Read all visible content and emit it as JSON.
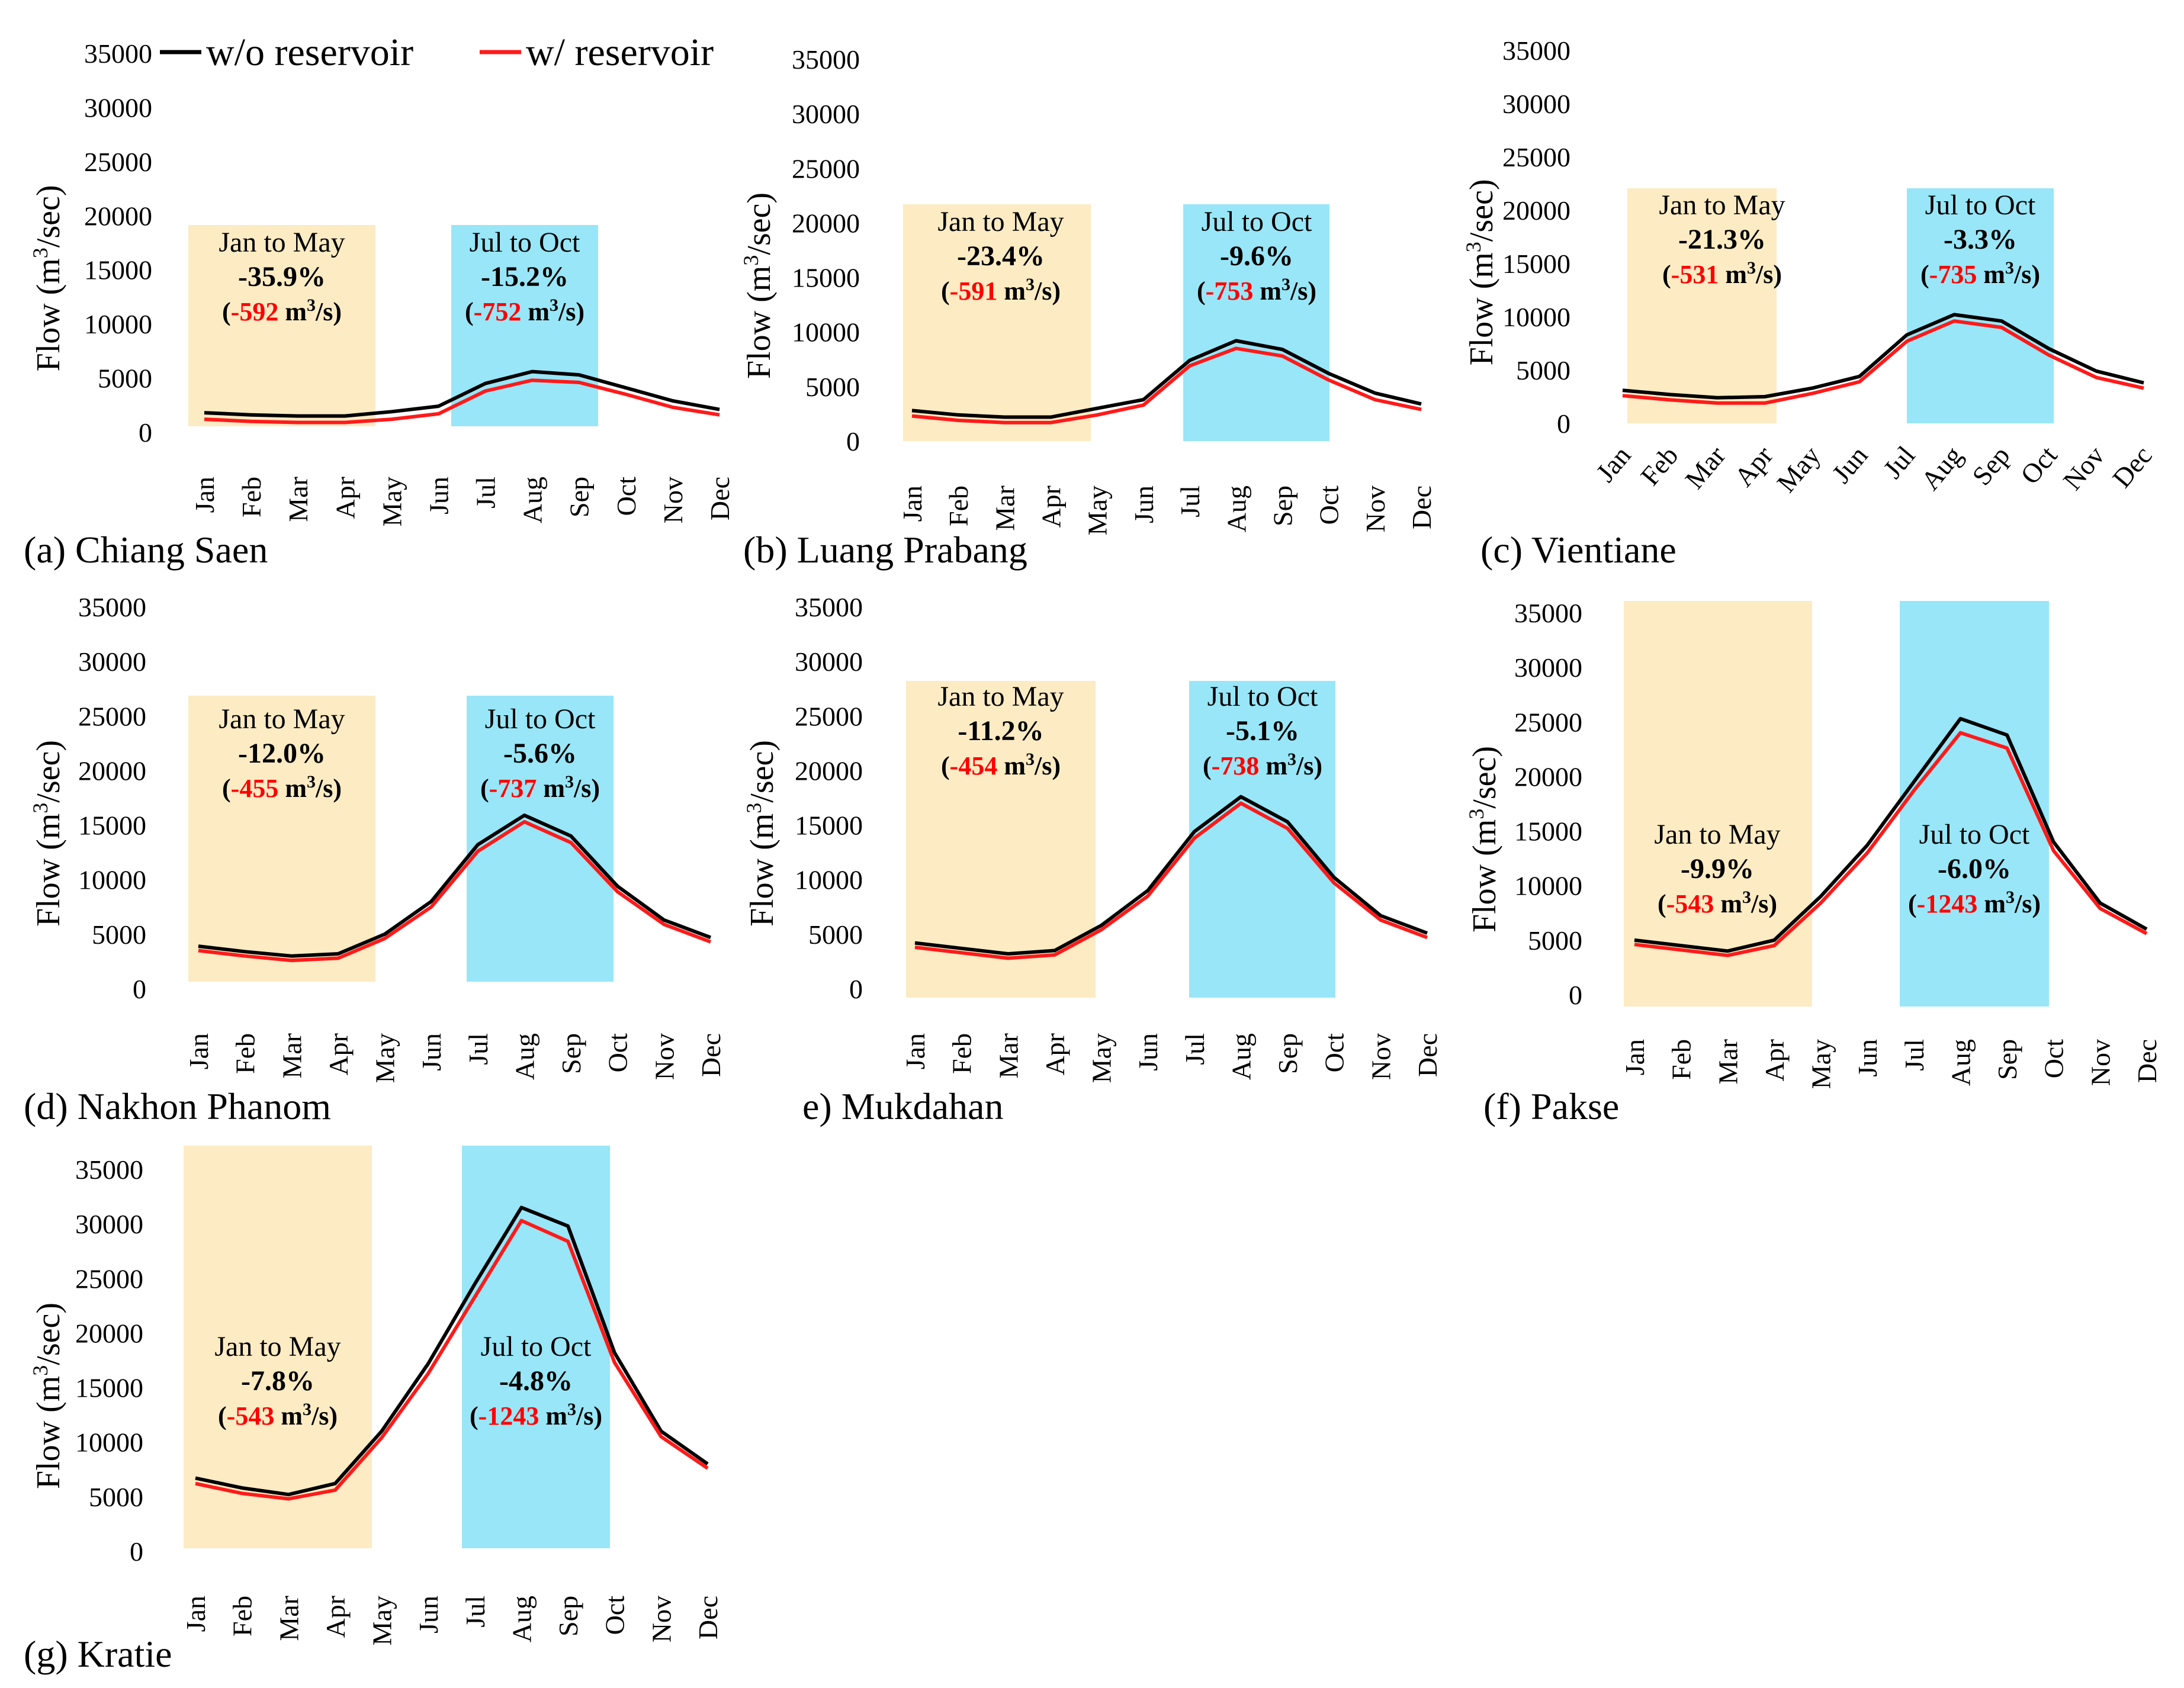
{
  "legend": [
    {
      "name": "w/o reservoir",
      "color": "#000000"
    },
    {
      "name": "w/ reservoir",
      "color": "#ff1a1a"
    }
  ],
  "colors": {
    "dry_box": "#fcebc3",
    "wet_box": "#98e6f7",
    "pct_text": "#ff0000",
    "abs_text": "#000000"
  },
  "chart_data": [
    {
      "type": "line",
      "panel_label": "(a) Chiang Saen",
      "ylabel": "Flow (m³/sec)",
      "ylim": [
        0,
        35000
      ],
      "yticks": [
        "0",
        "5000",
        "10000",
        "15000",
        "20000",
        "25000",
        "30000",
        "35000"
      ],
      "categories": [
        "Jan",
        "Feb",
        "Mar",
        "Apr",
        "May",
        "Jun",
        "Jul",
        "Aug",
        "Sep",
        "Oct",
        "Nov",
        "Dec"
      ],
      "series": [
        {
          "name": "w/o reservoir",
          "values": [
            1800,
            1600,
            1500,
            1500,
            1900,
            2400,
            4500,
            5600,
            5300,
            4100,
            2900,
            2100
          ]
        },
        {
          "name": "w/ reservoir",
          "values": [
            1200,
            1000,
            900,
            900,
            1200,
            1700,
            3800,
            4800,
            4600,
            3500,
            2300,
            1600
          ]
        }
      ],
      "annotations": [
        {
          "period": "Jan to May",
          "pct": "-35.9%",
          "abs_num": "-592",
          "unit": "m³/s"
        },
        {
          "period": "Jul to Oct",
          "pct": "-15.2%",
          "abs_num": "-752",
          "unit": "m³/s"
        }
      ]
    },
    {
      "type": "line",
      "panel_label": "(b) Luang Prabang",
      "ylabel": "Flow (m³/sec)",
      "ylim": [
        0,
        35000
      ],
      "yticks": [
        "0",
        "5000",
        "10000",
        "15000",
        "20000",
        "25000",
        "30000",
        "35000"
      ],
      "categories": [
        "Jan",
        "Feb",
        "Mar",
        "Apr",
        "May",
        "Jun",
        "Jul",
        "Aug",
        "Sep",
        "Oct",
        "Nov",
        "Dec"
      ],
      "series": [
        {
          "name": "w/o reservoir",
          "values": [
            2800,
            2400,
            2200,
            2200,
            3000,
            3800,
            7400,
            9200,
            8400,
            6200,
            4400,
            3400
          ]
        },
        {
          "name": "w/ reservoir",
          "values": [
            2300,
            1900,
            1700,
            1700,
            2400,
            3300,
            6900,
            8500,
            7800,
            5600,
            3800,
            2900
          ]
        }
      ],
      "annotations": [
        {
          "period": "Jan to May",
          "pct": "-23.4%",
          "abs_num": "-591",
          "unit": "m³/s"
        },
        {
          "period": "Jul to Oct",
          "pct": "-9.6%",
          "abs_num": "-753",
          "unit": "m³/s"
        }
      ]
    },
    {
      "type": "line",
      "panel_label": "(c) Vientiane",
      "ylabel": "Flow (m³/sec)",
      "ylim": [
        0,
        35000
      ],
      "yticks": [
        "0",
        "5000",
        "10000",
        "15000",
        "20000",
        "25000",
        "30000",
        "35000"
      ],
      "categories": [
        "Jan",
        "Feb",
        "Mar",
        "Apr",
        "May",
        "Jun",
        "Jul",
        "Aug",
        "Sep",
        "Oct",
        "Nov",
        "Dec"
      ],
      "series": [
        {
          "name": "w/o reservoir",
          "values": [
            3100,
            2700,
            2400,
            2500,
            3300,
            4400,
            8300,
            10200,
            9600,
            7000,
            4900,
            3800
          ]
        },
        {
          "name": "w/ reservoir",
          "values": [
            2600,
            2200,
            1900,
            1900,
            2800,
            3900,
            7700,
            9600,
            9000,
            6400,
            4300,
            3300
          ]
        }
      ],
      "annotations": [
        {
          "period": "Jan to May",
          "pct": "-21.3%",
          "abs_num": "-531",
          "unit": "m³/s"
        },
        {
          "period": "Jul to Oct",
          "pct": "-3.3%",
          "abs_num": "-735",
          "unit": "m³/s"
        }
      ]
    },
    {
      "type": "line",
      "panel_label": "(d) Nakhon Phanom",
      "ylabel": "Flow (m³/sec)",
      "ylim": [
        0,
        35000
      ],
      "yticks": [
        "0",
        "5000",
        "10000",
        "15000",
        "20000",
        "25000",
        "30000",
        "35000"
      ],
      "categories": [
        "Jan",
        "Feb",
        "Mar",
        "Apr",
        "May",
        "Jun",
        "Jul",
        "Aug",
        "Sep",
        "Oct",
        "Nov",
        "Dec"
      ],
      "series": [
        {
          "name": "w/o reservoir",
          "values": [
            3900,
            3400,
            3000,
            3200,
            5000,
            8000,
            13200,
            15900,
            14000,
            9400,
            6300,
            4700
          ]
        },
        {
          "name": "w/ reservoir",
          "values": [
            3500,
            3000,
            2600,
            2800,
            4600,
            7500,
            12600,
            15300,
            13400,
            8900,
            5900,
            4300
          ]
        }
      ],
      "annotations": [
        {
          "period": "Jan to May",
          "pct": "-12.0%",
          "abs_num": "-455",
          "unit": "m³/s"
        },
        {
          "period": "Jul to Oct",
          "pct": "-5.6%",
          "abs_num": "-737",
          "unit": "m³/s"
        }
      ]
    },
    {
      "type": "line",
      "panel_label": "e) Mukdahan",
      "ylabel": "Flow (m³/sec)",
      "ylim": [
        0,
        35000
      ],
      "yticks": [
        "0",
        "5000",
        "10000",
        "15000",
        "20000",
        "25000",
        "30000",
        "35000"
      ],
      "categories": [
        "Jan",
        "Feb",
        "Mar",
        "Apr",
        "May",
        "Jun",
        "Jul",
        "Aug",
        "Sep",
        "Oct",
        "Nov",
        "Dec"
      ],
      "series": [
        {
          "name": "w/o reservoir",
          "values": [
            4200,
            3700,
            3200,
            3500,
            5800,
            9000,
            14400,
            17600,
            15300,
            10200,
            6700,
            5100
          ]
        },
        {
          "name": "w/ reservoir",
          "values": [
            3800,
            3300,
            2800,
            3100,
            5400,
            8500,
            13800,
            17000,
            14700,
            9700,
            6300,
            4700
          ]
        }
      ],
      "annotations": [
        {
          "period": "Jan to May",
          "pct": "-11.2%",
          "abs_num": "-454",
          "unit": "m³/s"
        },
        {
          "period": "Jul to Oct",
          "pct": "-5.1%",
          "abs_num": "-738",
          "unit": "m³/s"
        }
      ]
    },
    {
      "type": "line",
      "panel_label": "(f) Pakse",
      "ylabel": "Flow (m³/sec)",
      "ylim": [
        0,
        35000
      ],
      "yticks": [
        "0",
        "5000",
        "10000",
        "15000",
        "20000",
        "25000",
        "30000",
        "35000"
      ],
      "categories": [
        "Jan",
        "Feb",
        "Mar",
        "Apr",
        "May",
        "Jun",
        "Jul",
        "Aug",
        "Sep",
        "Oct",
        "Nov",
        "Dec"
      ],
      "series": [
        {
          "name": "w/o reservoir",
          "values": [
            5000,
            4500,
            4000,
            5000,
            9000,
            13700,
            19500,
            25300,
            23800,
            14000,
            8400,
            6000
          ]
        },
        {
          "name": "w/ reservoir",
          "values": [
            4600,
            4100,
            3600,
            4500,
            8400,
            13000,
            18700,
            24000,
            22600,
            13200,
            7900,
            5600
          ]
        }
      ],
      "annotations": [
        {
          "period": "Jan to May",
          "pct": "-9.9%",
          "abs_num": "-543",
          "unit": "m³/s"
        },
        {
          "period": "Jul to Oct",
          "pct": "-6.0%",
          "abs_num": "-1243",
          "unit": "m³/s"
        }
      ]
    },
    {
      "type": "line",
      "panel_label": "(g) Kratie",
      "ylabel": "Flow (m³/sec)",
      "ylim": [
        0,
        35000
      ],
      "yticks": [
        "0",
        "5000",
        "10000",
        "15000",
        "20000",
        "25000",
        "30000",
        "35000"
      ],
      "categories": [
        "Jan",
        "Feb",
        "Mar",
        "Apr",
        "May",
        "Jun",
        "Jul",
        "Aug",
        "Sep",
        "Oct",
        "Nov",
        "Dec"
      ],
      "series": [
        {
          "name": "w/o reservoir",
          "values": [
            6700,
            5800,
            5200,
            6200,
            11000,
            17200,
            24500,
            31500,
            29800,
            18200,
            11000,
            8000
          ]
        },
        {
          "name": "w/ reservoir",
          "values": [
            6200,
            5300,
            4800,
            5600,
            10400,
            16300,
            23300,
            30300,
            28400,
            17300,
            10500,
            7600
          ]
        }
      ],
      "annotations": [
        {
          "period": "Jan to May",
          "pct": "-7.8%",
          "abs_num": "-543",
          "unit": "m³/s"
        },
        {
          "period": "Jul to Oct",
          "pct": "-4.8%",
          "abs_num": "-1243",
          "unit": "m³/s"
        }
      ]
    }
  ]
}
